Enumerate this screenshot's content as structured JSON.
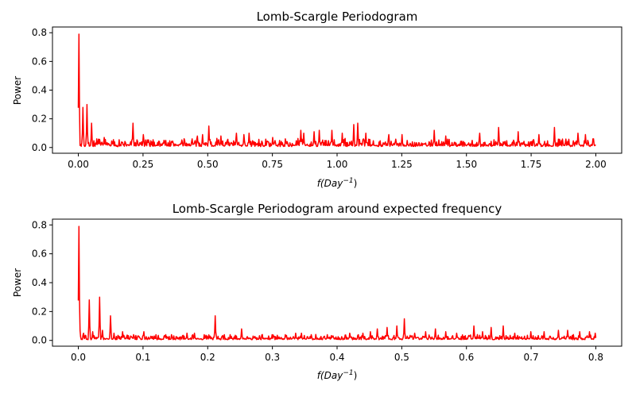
{
  "chart_data": [
    {
      "type": "line",
      "title": "Lomb-Scargle Periodogram",
      "xlabel": "f(Day",
      "xlabel_sup": "−1",
      "xlabel_close": ")",
      "ylabel": "Power",
      "xlim": [
        -0.1,
        2.1
      ],
      "ylim": [
        -0.04,
        0.84
      ],
      "xticks": [
        0,
        0.25,
        0.5,
        0.75,
        1.0,
        1.25,
        1.5,
        1.75,
        2.0
      ],
      "xtick_labels": [
        "0.00",
        "0.25",
        "0.50",
        "0.75",
        "1.00",
        "1.25",
        "1.50",
        "1.75",
        "2.00"
      ],
      "yticks": [
        0,
        0.2,
        0.4,
        0.6,
        0.8
      ],
      "ytick_labels": [
        "0.0",
        "0.2",
        "0.4",
        "0.6",
        "0.8"
      ],
      "grid": false,
      "color": "#ff0000",
      "x_max": 2.0,
      "baseline": 0.02,
      "noise": 0.05,
      "peaks": [
        {
          "x": 0.002,
          "y": 0.79
        },
        {
          "x": 0.017,
          "y": 0.28
        },
        {
          "x": 0.033,
          "y": 0.3
        },
        {
          "x": 0.05,
          "y": 0.17
        },
        {
          "x": 0.07,
          "y": 0.06
        },
        {
          "x": 0.1,
          "y": 0.07
        },
        {
          "x": 0.212,
          "y": 0.17
        },
        {
          "x": 0.252,
          "y": 0.09
        },
        {
          "x": 0.33,
          "y": 0.05
        },
        {
          "x": 0.44,
          "y": 0.06
        },
        {
          "x": 0.46,
          "y": 0.08
        },
        {
          "x": 0.48,
          "y": 0.09
        },
        {
          "x": 0.504,
          "y": 0.15
        },
        {
          "x": 0.55,
          "y": 0.08
        },
        {
          "x": 0.61,
          "y": 0.1
        },
        {
          "x": 0.64,
          "y": 0.09
        },
        {
          "x": 0.66,
          "y": 0.1
        },
        {
          "x": 0.75,
          "y": 0.07
        },
        {
          "x": 0.86,
          "y": 0.12
        },
        {
          "x": 0.87,
          "y": 0.1
        },
        {
          "x": 0.91,
          "y": 0.11
        },
        {
          "x": 0.93,
          "y": 0.12
        },
        {
          "x": 0.98,
          "y": 0.12
        },
        {
          "x": 1.02,
          "y": 0.1
        },
        {
          "x": 1.065,
          "y": 0.16
        },
        {
          "x": 1.08,
          "y": 0.17
        },
        {
          "x": 1.11,
          "y": 0.1
        },
        {
          "x": 1.2,
          "y": 0.09
        },
        {
          "x": 1.25,
          "y": 0.09
        },
        {
          "x": 1.375,
          "y": 0.12
        },
        {
          "x": 1.42,
          "y": 0.08
        },
        {
          "x": 1.55,
          "y": 0.1
        },
        {
          "x": 1.625,
          "y": 0.14
        },
        {
          "x": 1.7,
          "y": 0.11
        },
        {
          "x": 1.78,
          "y": 0.09
        },
        {
          "x": 1.84,
          "y": 0.14
        },
        {
          "x": 1.93,
          "y": 0.1
        },
        {
          "x": 1.96,
          "y": 0.09
        },
        {
          "x": 1.99,
          "y": 0.06
        }
      ]
    },
    {
      "type": "line",
      "title": "Lomb-Scargle Periodogram around expected frequency",
      "xlabel": "f(Day",
      "xlabel_sup": "−1",
      "xlabel_close": ")",
      "ylabel": "Power",
      "xlim": [
        -0.04,
        0.84
      ],
      "ylim": [
        -0.04,
        0.84
      ],
      "xticks": [
        0,
        0.1,
        0.2,
        0.3,
        0.4,
        0.5,
        0.6,
        0.7,
        0.8
      ],
      "xtick_labels": [
        "0.0",
        "0.1",
        "0.2",
        "0.3",
        "0.4",
        "0.5",
        "0.6",
        "0.7",
        "0.8"
      ],
      "yticks": [
        0,
        0.2,
        0.4,
        0.6,
        0.8
      ],
      "ytick_labels": [
        "0.0",
        "0.2",
        "0.4",
        "0.6",
        "0.8"
      ],
      "grid": false,
      "color": "#ff0000",
      "x_max": 0.8,
      "baseline": 0.015,
      "noise": 0.03,
      "peaks": [
        {
          "x": 0.001,
          "y": 0.79
        },
        {
          "x": 0.003,
          "y": 0.07
        },
        {
          "x": 0.008,
          "y": 0.05
        },
        {
          "x": 0.017,
          "y": 0.28
        },
        {
          "x": 0.022,
          "y": 0.06
        },
        {
          "x": 0.033,
          "y": 0.3
        },
        {
          "x": 0.037,
          "y": 0.07
        },
        {
          "x": 0.05,
          "y": 0.17
        },
        {
          "x": 0.055,
          "y": 0.05
        },
        {
          "x": 0.068,
          "y": 0.06
        },
        {
          "x": 0.085,
          "y": 0.04
        },
        {
          "x": 0.101,
          "y": 0.06
        },
        {
          "x": 0.12,
          "y": 0.04
        },
        {
          "x": 0.135,
          "y": 0.04
        },
        {
          "x": 0.168,
          "y": 0.05
        },
        {
          "x": 0.18,
          "y": 0.05
        },
        {
          "x": 0.195,
          "y": 0.04
        },
        {
          "x": 0.212,
          "y": 0.17
        },
        {
          "x": 0.235,
          "y": 0.04
        },
        {
          "x": 0.252,
          "y": 0.08
        },
        {
          "x": 0.27,
          "y": 0.03
        },
        {
          "x": 0.3,
          "y": 0.04
        },
        {
          "x": 0.32,
          "y": 0.04
        },
        {
          "x": 0.336,
          "y": 0.05
        },
        {
          "x": 0.345,
          "y": 0.05
        },
        {
          "x": 0.36,
          "y": 0.04
        },
        {
          "x": 0.385,
          "y": 0.04
        },
        {
          "x": 0.42,
          "y": 0.05
        },
        {
          "x": 0.44,
          "y": 0.05
        },
        {
          "x": 0.452,
          "y": 0.06
        },
        {
          "x": 0.462,
          "y": 0.08
        },
        {
          "x": 0.477,
          "y": 0.09
        },
        {
          "x": 0.492,
          "y": 0.1
        },
        {
          "x": 0.504,
          "y": 0.15
        },
        {
          "x": 0.52,
          "y": 0.05
        },
        {
          "x": 0.537,
          "y": 0.06
        },
        {
          "x": 0.552,
          "y": 0.08
        },
        {
          "x": 0.568,
          "y": 0.06
        },
        {
          "x": 0.585,
          "y": 0.05
        },
        {
          "x": 0.612,
          "y": 0.1
        },
        {
          "x": 0.625,
          "y": 0.06
        },
        {
          "x": 0.638,
          "y": 0.09
        },
        {
          "x": 0.657,
          "y": 0.1
        },
        {
          "x": 0.675,
          "y": 0.05
        },
        {
          "x": 0.7,
          "y": 0.06
        },
        {
          "x": 0.72,
          "y": 0.06
        },
        {
          "x": 0.742,
          "y": 0.07
        },
        {
          "x": 0.756,
          "y": 0.07
        },
        {
          "x": 0.775,
          "y": 0.06
        },
        {
          "x": 0.79,
          "y": 0.06
        },
        {
          "x": 0.799,
          "y": 0.05
        }
      ]
    }
  ]
}
